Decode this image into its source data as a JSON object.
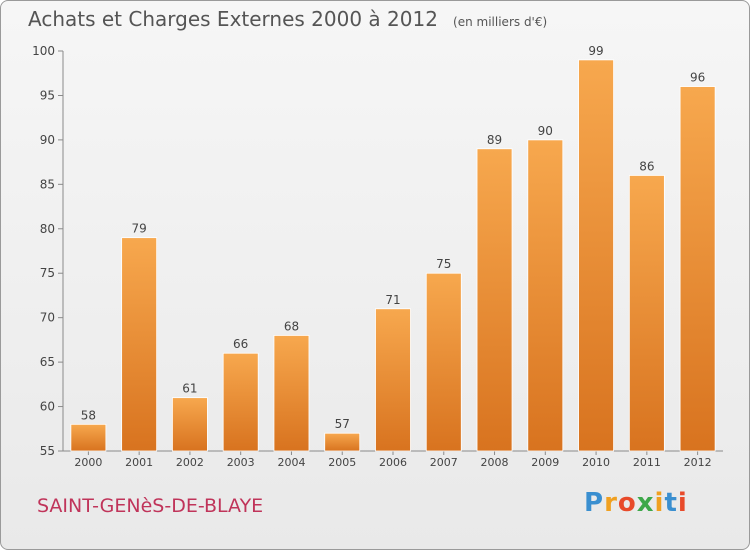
{
  "header": {
    "title": "Achats et Charges Externes 2000 à 2012",
    "subtitle": "(en milliers d'€)"
  },
  "footer": {
    "commune": "SAINT-GENèS-DE-BLAYE",
    "brand": "Proxiti",
    "brand_letters": [
      {
        "char": "P",
        "color": "#3a8fd0"
      },
      {
        "char": "r",
        "color": "#f0a020"
      },
      {
        "char": "o",
        "color": "#e84a2a"
      },
      {
        "char": "x",
        "color": "#3ea84a"
      },
      {
        "char": "i",
        "color": "#f0a020"
      },
      {
        "char": "t",
        "color": "#3a8fd0"
      },
      {
        "char": "i",
        "color": "#e84a2a"
      }
    ]
  },
  "chart_data": {
    "type": "bar",
    "title": "Achats et Charges Externes 2000 à 2012",
    "subtitle": "(en milliers d'€)",
    "categories": [
      "2000",
      "2001",
      "2002",
      "2003",
      "2004",
      "2005",
      "2006",
      "2007",
      "2008",
      "2009",
      "2010",
      "2011",
      "2012"
    ],
    "values": [
      58,
      79,
      61,
      66,
      68,
      57,
      71,
      75,
      89,
      90,
      99,
      86,
      96
    ],
    "ylim": [
      55,
      100
    ],
    "yticks": [
      55,
      60,
      65,
      70,
      75,
      80,
      85,
      90,
      95,
      100
    ],
    "grid": false,
    "bar_color_top": "#f7a84e",
    "bar_color_bottom": "#d8731f",
    "data_labels": true
  }
}
